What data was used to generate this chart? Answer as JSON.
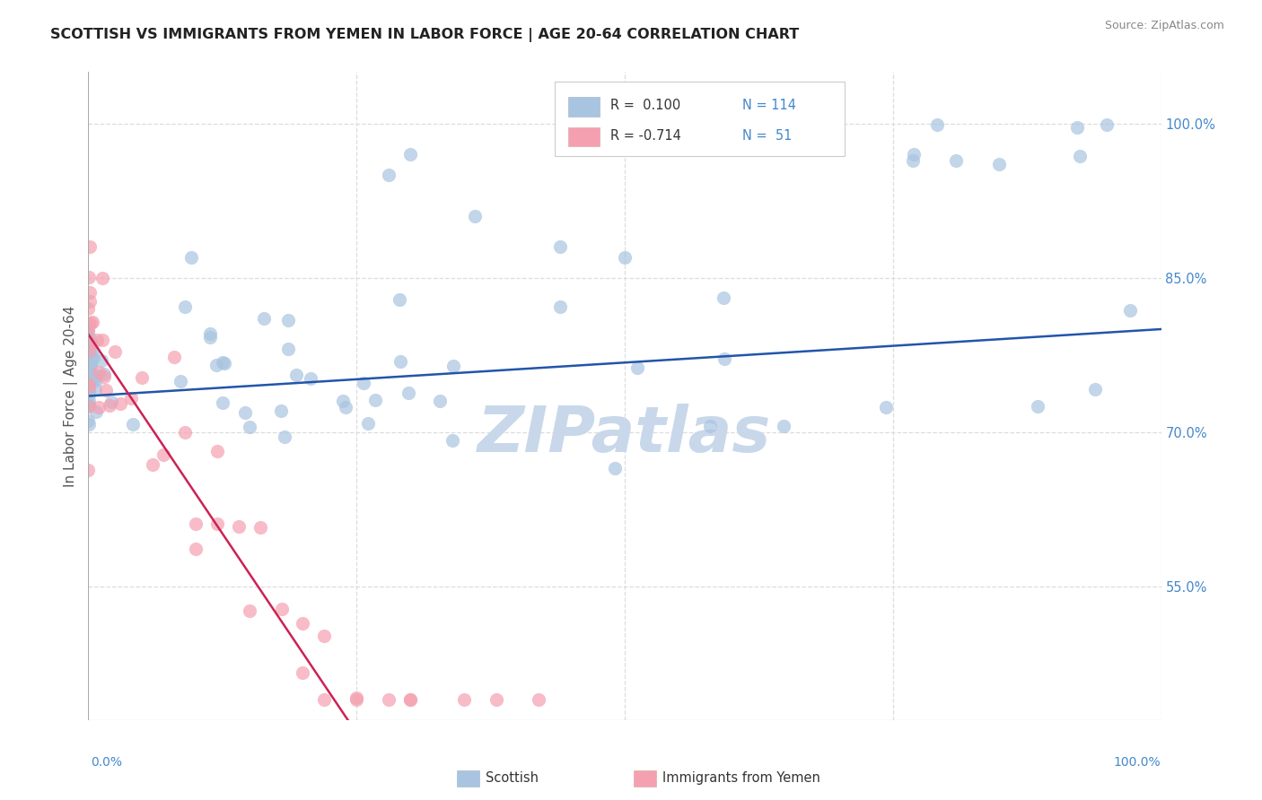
{
  "title": "SCOTTISH VS IMMIGRANTS FROM YEMEN IN LABOR FORCE | AGE 20-64 CORRELATION CHART",
  "source": "Source: ZipAtlas.com",
  "ylabel": "In Labor Force | Age 20-64",
  "xmin": 0.0,
  "xmax": 1.0,
  "ymin": 0.42,
  "ymax": 1.05,
  "right_yticks": [
    0.55,
    0.7,
    0.85,
    1.0
  ],
  "right_yticklabels": [
    "55.0%",
    "70.0%",
    "85.0%",
    "100.0%"
  ],
  "scottish_color": "#a8c4e0",
  "yemen_color": "#f4a0b0",
  "scottish_edge_color": "#5588bb",
  "yemen_edge_color": "#d06080",
  "regression_blue_color": "#2255aa",
  "regression_pink_color": "#cc2255",
  "regression_dashed_color": "#ddbbcc",
  "legend_R_scottish": "0.100",
  "legend_N_scottish": "114",
  "legend_R_yemen": "-0.714",
  "legend_N_yemen": "51",
  "watermark": "ZIPatlas",
  "watermark_color": "#c8d8ea",
  "background_color": "#ffffff",
  "grid_color": "#dddddd",
  "title_color": "#222222",
  "axis_label_color": "#555555",
  "right_axis_color": "#4488cc",
  "bottom_label_color": "#4488cc"
}
